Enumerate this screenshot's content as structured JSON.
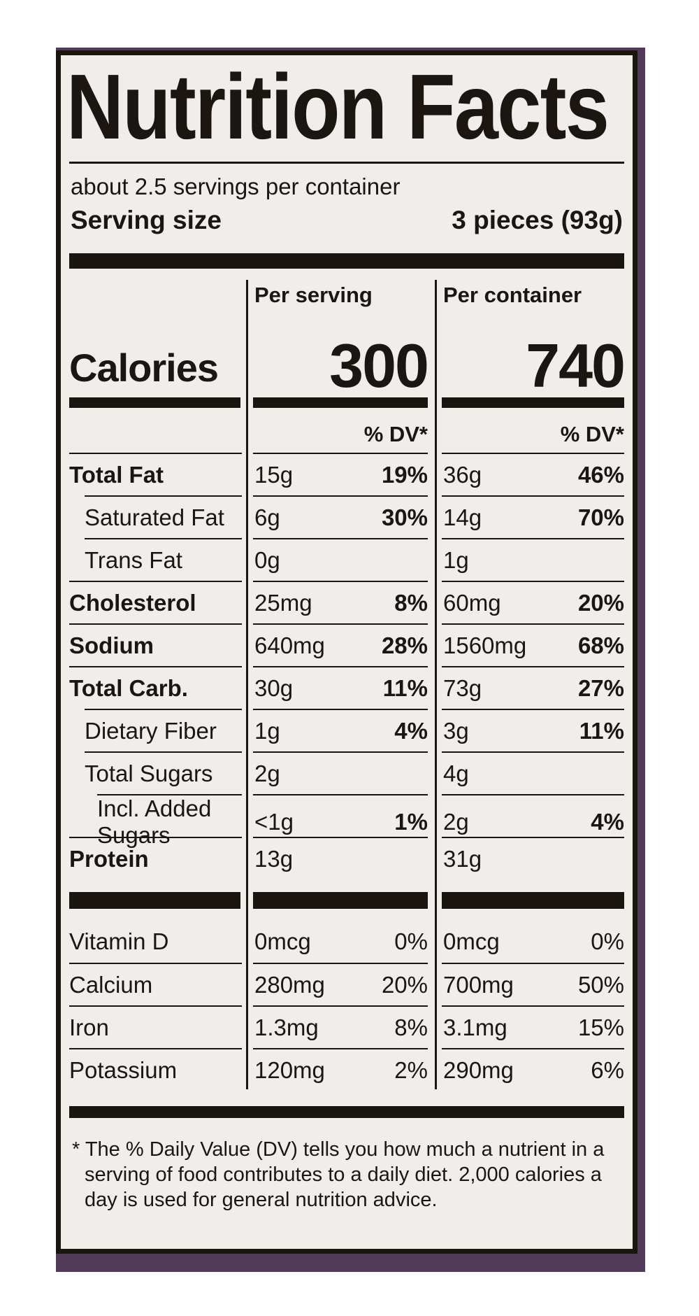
{
  "label": {
    "title": "Nutrition Facts",
    "servings_per_container": "about 2.5 servings per container",
    "serving_size_label": "Serving size",
    "serving_size_value": "3 pieces (93g)",
    "columns": {
      "serving": "Per serving",
      "container": "Per container"
    },
    "calories": {
      "label": "Calories",
      "per_serving": "300",
      "per_container": "740"
    },
    "dv_header": "% DV*",
    "rows": [
      {
        "name": "Total Fat",
        "bold": true,
        "indent": 0,
        "s_amt": "15g",
        "s_dv": "19%",
        "c_amt": "36g",
        "c_dv": "46%",
        "dv_bold": true
      },
      {
        "name": "Saturated Fat",
        "bold": false,
        "indent": 1,
        "s_amt": "6g",
        "s_dv": "30%",
        "c_amt": "14g",
        "c_dv": "70%",
        "dv_bold": true
      },
      {
        "name": "Trans Fat",
        "bold": false,
        "indent": 1,
        "s_amt": "0g",
        "s_dv": "",
        "c_amt": "1g",
        "c_dv": "",
        "dv_bold": false
      },
      {
        "name": "Cholesterol",
        "bold": true,
        "indent": 0,
        "s_amt": "25mg",
        "s_dv": "8%",
        "c_amt": "60mg",
        "c_dv": "20%",
        "dv_bold": true
      },
      {
        "name": "Sodium",
        "bold": true,
        "indent": 0,
        "s_amt": "640mg",
        "s_dv": "28%",
        "c_amt": "1560mg",
        "c_dv": "68%",
        "dv_bold": true
      },
      {
        "name": "Total Carb.",
        "bold": true,
        "indent": 0,
        "s_amt": "30g",
        "s_dv": "11%",
        "c_amt": "73g",
        "c_dv": "27%",
        "dv_bold": true
      },
      {
        "name": "Dietary Fiber",
        "bold": false,
        "indent": 1,
        "s_amt": "1g",
        "s_dv": "4%",
        "c_amt": "3g",
        "c_dv": "11%",
        "dv_bold": true
      },
      {
        "name": "Total Sugars",
        "bold": false,
        "indent": 1,
        "s_amt": "2g",
        "s_dv": "",
        "c_amt": "4g",
        "c_dv": "",
        "dv_bold": false
      },
      {
        "name": "Incl. Added Sugars",
        "bold": false,
        "indent": 2,
        "s_amt": "<1g",
        "s_dv": "1%",
        "c_amt": "2g",
        "c_dv": "4%",
        "dv_bold": true
      },
      {
        "name": "Protein",
        "bold": true,
        "indent": 0,
        "s_amt": "13g",
        "s_dv": "",
        "c_amt": "31g",
        "c_dv": "",
        "dv_bold": false
      }
    ],
    "micro_rows": [
      {
        "name": "Vitamin D",
        "indent": 0,
        "s_amt": "0mcg",
        "s_dv": "0%",
        "c_amt": "0mcg",
        "c_dv": "0%"
      },
      {
        "name": "Calcium",
        "indent": 0,
        "s_amt": "280mg",
        "s_dv": "20%",
        "c_amt": "700mg",
        "c_dv": "50%"
      },
      {
        "name": "Iron",
        "indent": 0,
        "s_amt": "1.3mg",
        "s_dv": "8%",
        "c_amt": "3.1mg",
        "c_dv": "15%"
      },
      {
        "name": "Potassium",
        "indent": 0,
        "s_amt": "120mg",
        "s_dv": "2%",
        "c_amt": "290mg",
        "c_dv": "6%"
      }
    ],
    "footnote": "* The % Daily Value (DV) tells you how much a nutrient in a serving of food contributes to a daily diet. 2,000 calories a day is used for general nutrition advice.",
    "colors": {
      "label_bg": "#efeeea",
      "ink": "#1b1510",
      "package": "#523b58"
    }
  }
}
